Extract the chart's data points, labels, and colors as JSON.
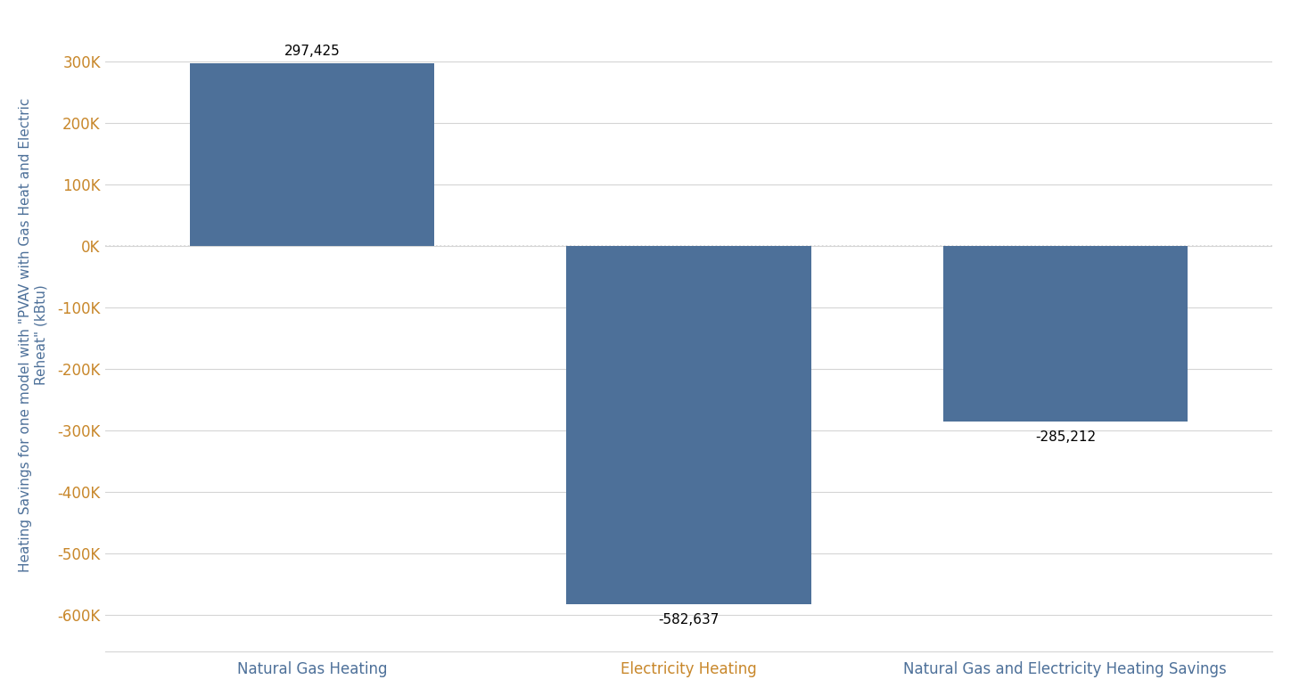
{
  "categories": [
    "Natural Gas Heating",
    "Electricity Heating",
    "Natural Gas and Electricity Heating Savings"
  ],
  "values": [
    297425,
    -582637,
    -285212
  ],
  "bar_color": "#4d7099",
  "label_values": [
    "297,425",
    "-582,637",
    "-285,212"
  ],
  "ylabel": "Heating Savings for one model with \"PVAV with Gas Heat and Electric\nReheat\" (kBtu)",
  "ylabel_color": "#4d7099",
  "xtick_colors": [
    "#4d7099",
    "#c8872a",
    "#4d7099"
  ],
  "ytick_color": "#c8872a",
  "ylim_min": -660000,
  "ylim_max": 370000,
  "yticks": [
    300000,
    200000,
    100000,
    0,
    -100000,
    -200000,
    -300000,
    -400000,
    -500000,
    -600000
  ],
  "ytick_labels": [
    "300K",
    "200K",
    "100K",
    "0K",
    "-100K",
    "-200K",
    "-300K",
    "-400K",
    "-500K",
    "-600K"
  ],
  "grid_color": "#d5d5d5",
  "background_color": "#ffffff",
  "label_fontsize": 11,
  "tick_fontsize": 12,
  "ylabel_fontsize": 11,
  "xtick_fontsize": 12
}
